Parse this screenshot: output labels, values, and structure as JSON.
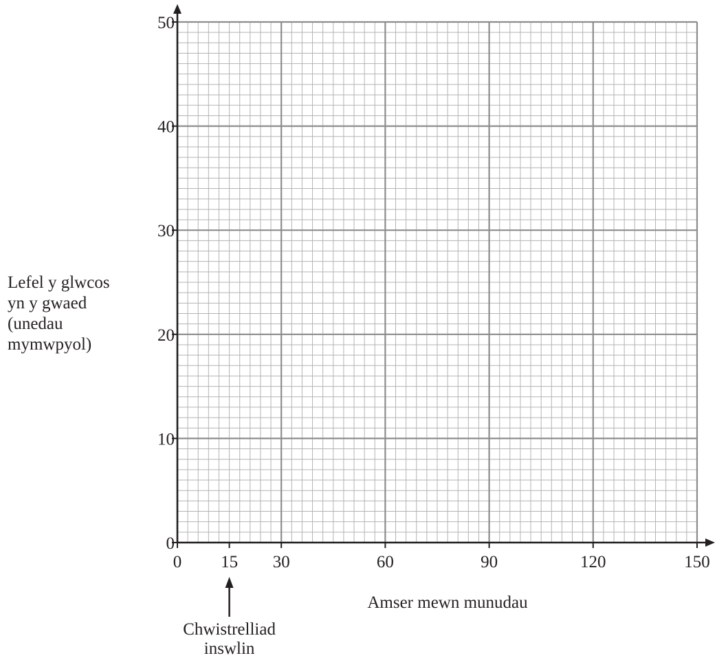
{
  "chart_data": {
    "type": "line",
    "title": "",
    "xlabel": "Amser mewn munudau",
    "ylabel_lines": [
      "Lefel y glwcos",
      "yn y gwaed",
      "(unedau",
      "mymwpyol)"
    ],
    "x_ticks": [
      "0",
      "15",
      "30",
      "60",
      "90",
      "120",
      "150"
    ],
    "x_tick_values": [
      0,
      15,
      30,
      60,
      90,
      120,
      150
    ],
    "y_ticks": [
      "0",
      "10",
      "20",
      "30",
      "40",
      "50"
    ],
    "y_tick_values": [
      0,
      10,
      20,
      30,
      40,
      50
    ],
    "xlim": [
      0,
      150
    ],
    "ylim": [
      0,
      50
    ],
    "grid": true,
    "series": [],
    "annotation": {
      "x": 15,
      "lines": [
        "Chwistrelliad",
        "inswlin"
      ]
    }
  },
  "colors": {
    "axis": "#231f20",
    "grid_major": "#8c8c8c",
    "grid_minor": "#b3b3b3",
    "text": "#231f20"
  }
}
